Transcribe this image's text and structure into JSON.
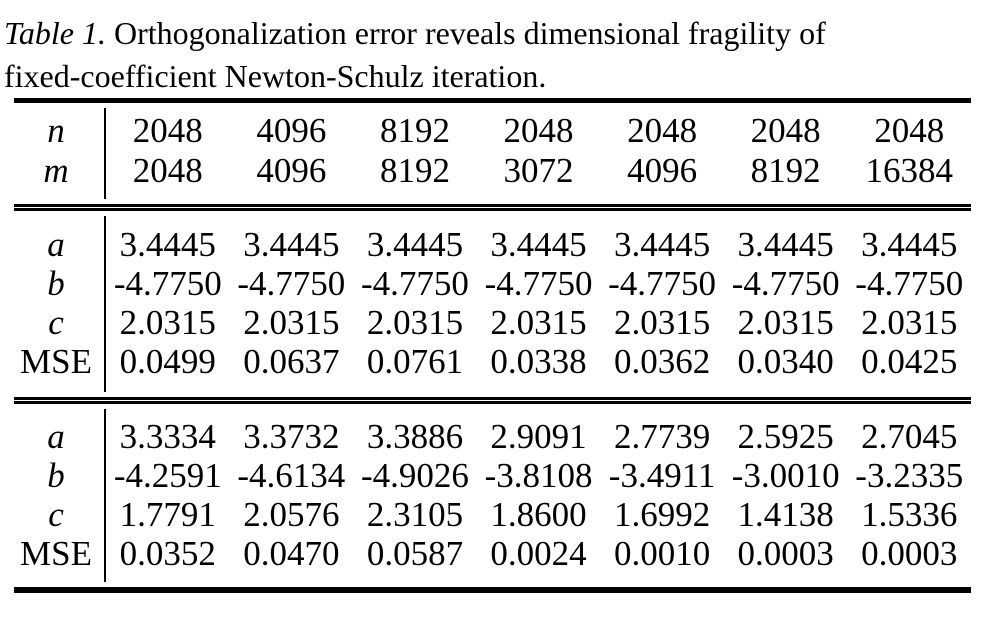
{
  "caption": {
    "label": "Table 1.",
    "line1": "Orthogonalization error reveals dimensional fragility of",
    "line2": "fixed-coefficient Newton-Schulz iteration."
  },
  "table": {
    "header": {
      "rows": [
        {
          "label": "n",
          "values": [
            "2048",
            "4096",
            "8192",
            "2048",
            "2048",
            "2048",
            "2048"
          ]
        },
        {
          "label": "m",
          "values": [
            "2048",
            "4096",
            "8192",
            "3072",
            "4096",
            "8192",
            "16384"
          ]
        }
      ]
    },
    "block1": {
      "rows": [
        {
          "label": "a",
          "values": [
            "3.4445",
            "3.4445",
            "3.4445",
            "3.4445",
            "3.4445",
            "3.4445",
            "3.4445"
          ]
        },
        {
          "label": "b",
          "values": [
            "-4.7750",
            "-4.7750",
            "-4.7750",
            "-4.7750",
            "-4.7750",
            "-4.7750",
            "-4.7750"
          ]
        },
        {
          "label": "c",
          "values": [
            "2.0315",
            "2.0315",
            "2.0315",
            "2.0315",
            "2.0315",
            "2.0315",
            "2.0315"
          ]
        },
        {
          "label": "MSE",
          "values": [
            "0.0499",
            "0.0637",
            "0.0761",
            "0.0338",
            "0.0362",
            "0.0340",
            "0.0425"
          ]
        }
      ]
    },
    "block2": {
      "rows": [
        {
          "label": "a",
          "values": [
            "3.3334",
            "3.3732",
            "3.3886",
            "2.9091",
            "2.7739",
            "2.5925",
            "2.7045"
          ]
        },
        {
          "label": "b",
          "values": [
            "-4.2591",
            "-4.6134",
            "-4.9026",
            "-3.8108",
            "-3.4911",
            "-3.0010",
            "-3.2335"
          ]
        },
        {
          "label": "c",
          "values": [
            "1.7791",
            "2.0576",
            "2.3105",
            "1.8600",
            "1.6992",
            "1.4138",
            "1.5336"
          ]
        },
        {
          "label": "MSE",
          "values": [
            "0.0352",
            "0.0470",
            "0.0587",
            "0.0024",
            "0.0010",
            "0.0003",
            "0.0003"
          ]
        }
      ]
    }
  }
}
